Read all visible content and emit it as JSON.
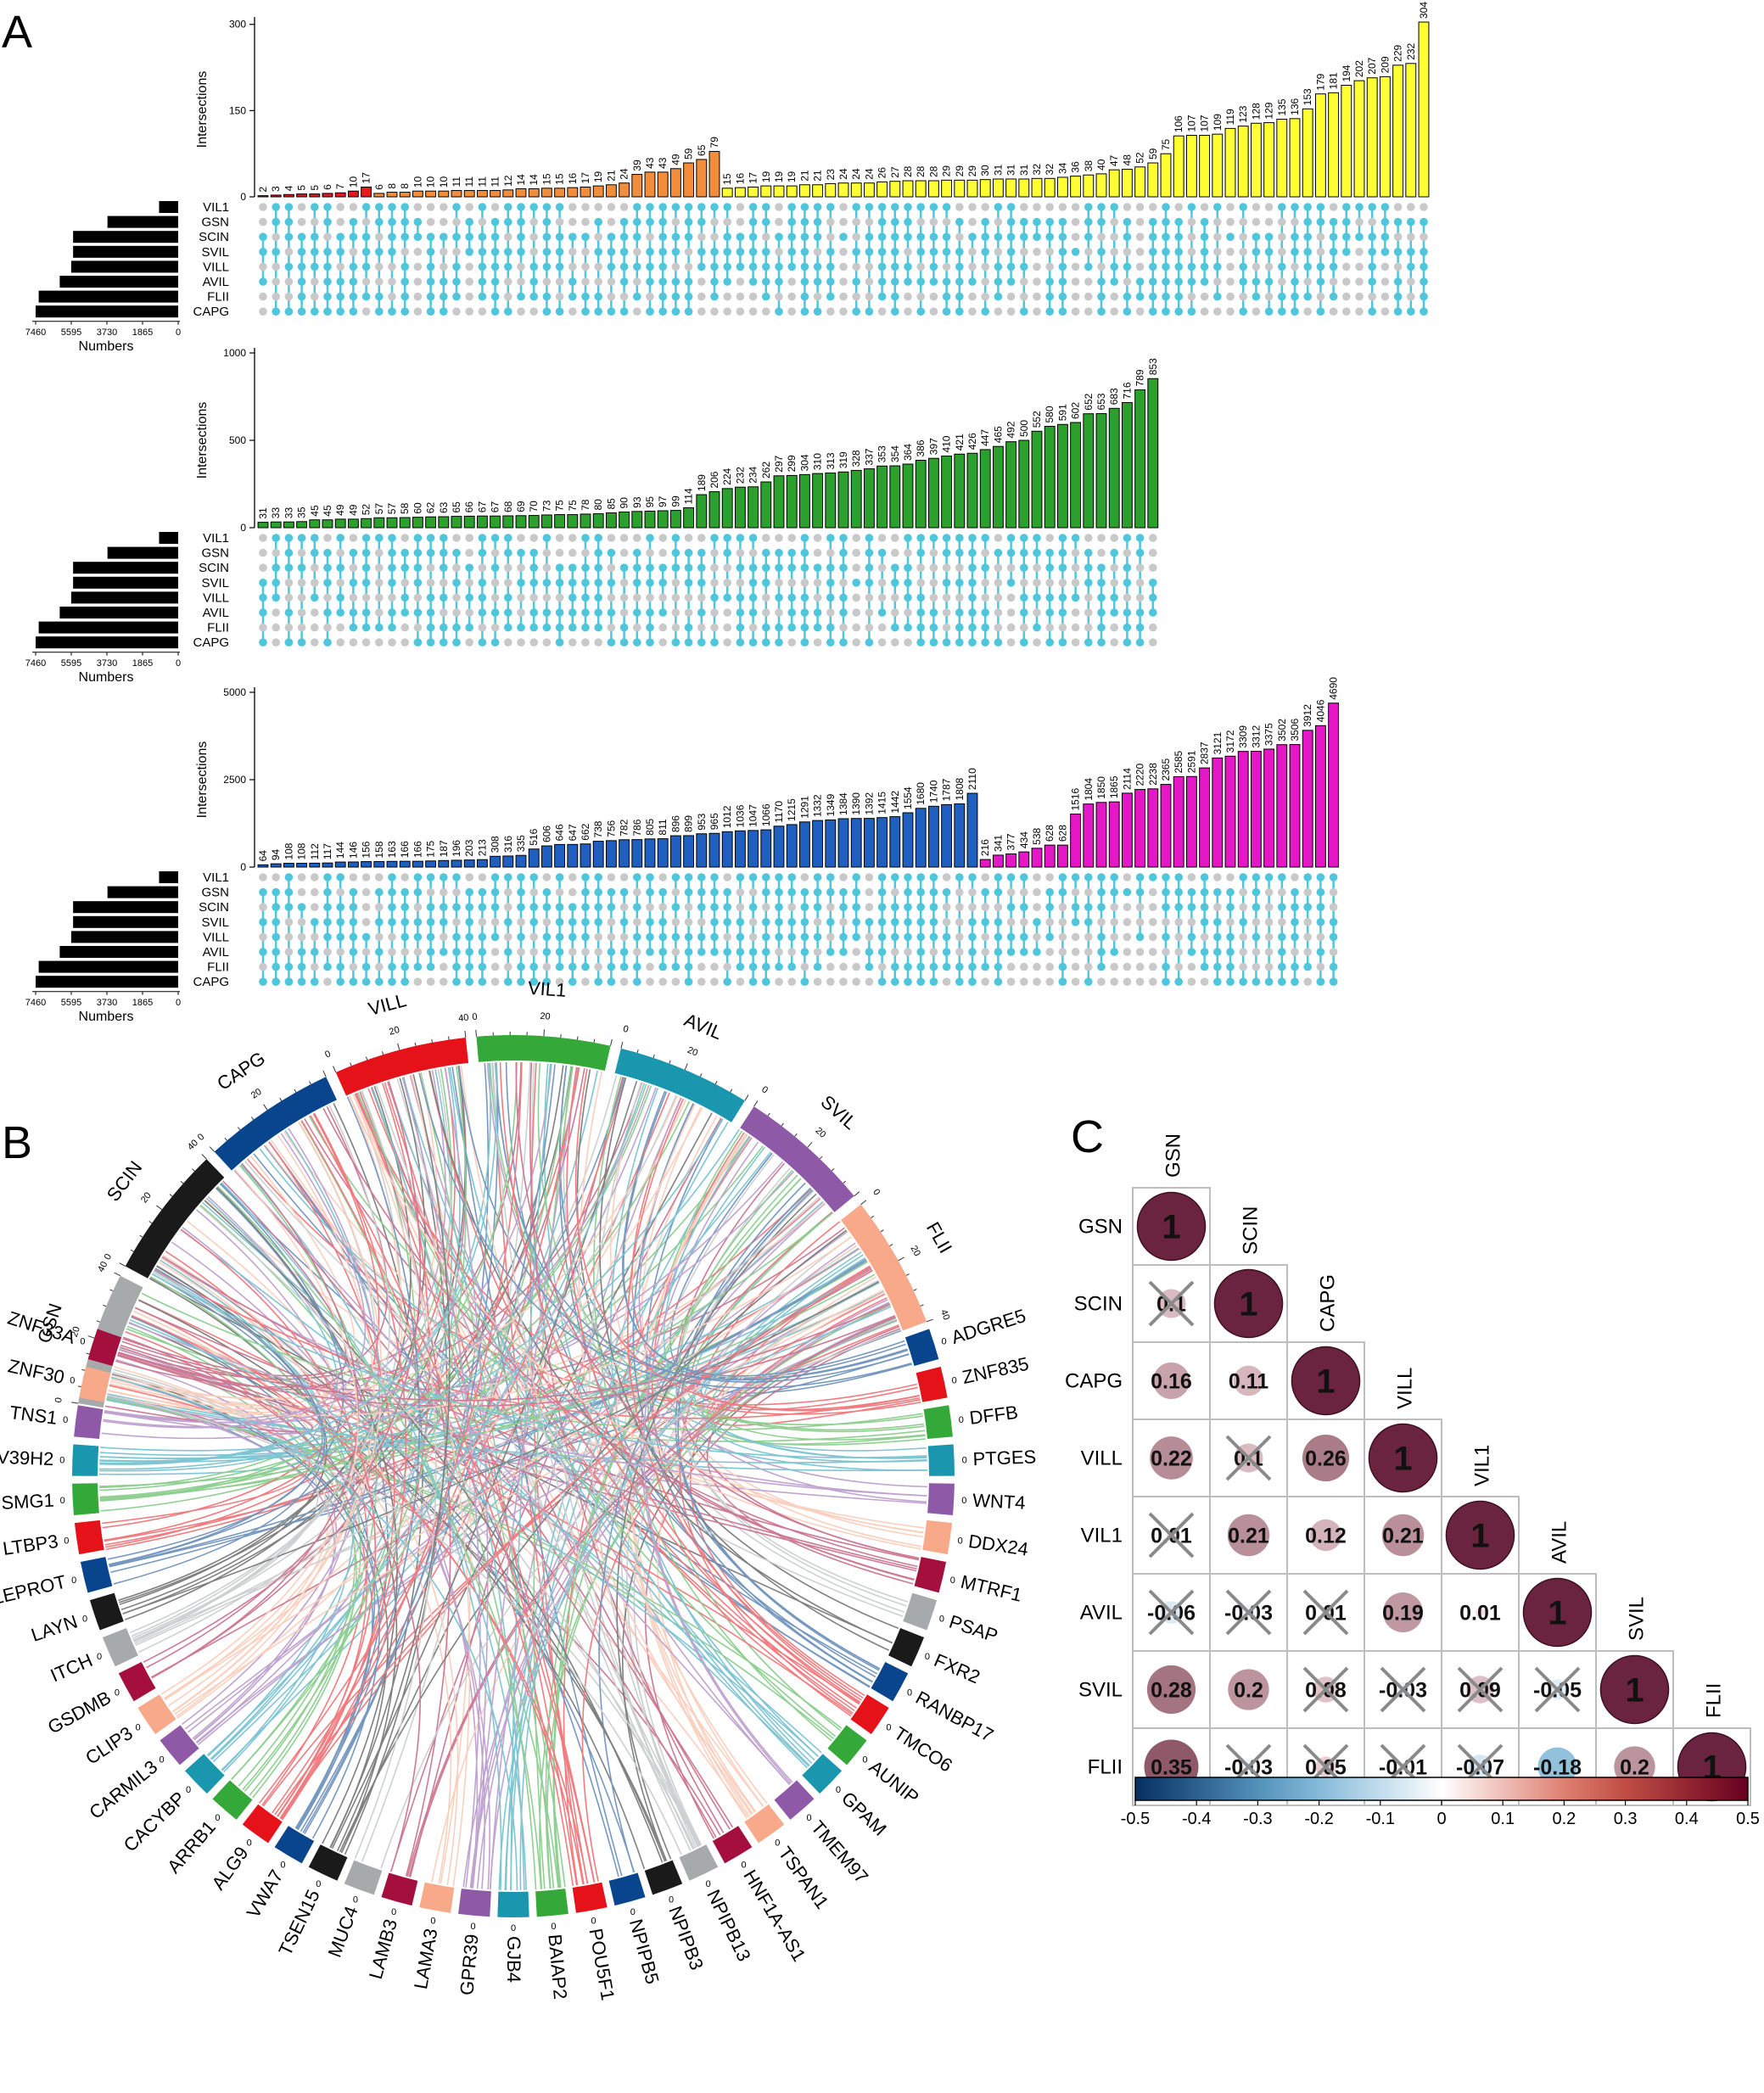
{
  "panel_labels": {
    "a": "A",
    "b": "B",
    "c": "C"
  },
  "chart_data": [
    {
      "id": "upset-1",
      "type": "bar",
      "ylabel": "Intersections",
      "xlabel": "Numbers",
      "ylim": [
        0,
        304
      ],
      "yticks": [
        0,
        150,
        300
      ],
      "set_ticks": [
        "7460",
        "5595",
        "3730",
        "1865",
        "0"
      ],
      "sets": [
        "VIL1",
        "GSN",
        "SCIN",
        "SVIL",
        "VILL",
        "AVIL",
        "FLII",
        "CAPG"
      ],
      "set_sizes": [
        1000,
        3700,
        5500,
        5500,
        5600,
        6200,
        7300,
        7460
      ],
      "series": [
        {
          "color": "#E31A1C",
          "values": [
            2,
            3,
            4,
            5,
            5,
            6,
            7,
            10,
            17
          ]
        },
        {
          "color": "#F28E3B",
          "values": [
            6,
            8,
            8,
            10,
            10,
            10,
            11,
            11,
            11,
            11,
            12,
            14,
            14,
            15,
            15,
            16,
            17,
            19,
            21,
            24,
            39,
            43,
            43,
            49,
            59,
            65,
            79
          ]
        },
        {
          "color": "#FFFF33",
          "values": [
            15,
            16,
            17,
            19,
            19,
            19,
            21,
            21,
            23,
            24,
            24,
            24,
            26,
            27,
            28,
            28,
            28,
            29,
            29,
            29,
            30,
            31,
            31,
            31,
            32,
            32,
            34,
            36,
            38,
            40,
            47,
            48,
            52,
            59,
            75,
            106,
            107,
            107,
            109,
            119,
            123,
            128,
            129,
            135,
            136,
            153,
            179,
            181,
            194,
            202,
            207,
            209,
            229,
            232,
            304
          ]
        }
      ]
    },
    {
      "id": "upset-2",
      "type": "bar",
      "ylabel": "Intersections",
      "xlabel": "Numbers",
      "ylim": [
        0,
        1000
      ],
      "yticks": [
        0,
        500,
        1000
      ],
      "set_ticks": [
        "7460",
        "5595",
        "3730",
        "1865",
        "0"
      ],
      "sets": [
        "VIL1",
        "GSN",
        "SCIN",
        "SVIL",
        "VILL",
        "AVIL",
        "FLII",
        "CAPG"
      ],
      "set_sizes": [
        1000,
        3700,
        5500,
        5500,
        5600,
        6200,
        7300,
        7460
      ],
      "series": [
        {
          "color": "#2CA02C",
          "values": [
            31,
            33,
            33,
            35,
            45,
            45,
            49,
            49,
            52,
            57,
            57,
            58,
            60,
            62,
            63,
            65,
            66,
            67,
            67,
            68,
            69,
            70,
            73,
            75,
            75,
            78,
            80,
            85,
            90,
            93,
            95,
            97,
            99,
            114,
            189,
            206,
            224,
            232,
            234,
            262,
            297,
            299,
            304,
            310,
            313,
            319,
            328,
            337,
            353,
            354,
            364,
            386,
            397,
            410,
            421,
            426,
            447,
            465,
            492,
            500,
            552,
            580,
            591,
            602,
            652,
            653,
            683,
            716,
            789,
            853
          ]
        }
      ]
    },
    {
      "id": "upset-3",
      "type": "bar",
      "ylabel": "Intersections",
      "xlabel": "Numbers",
      "ylim": [
        0,
        5000
      ],
      "yticks": [
        0,
        2500,
        5000
      ],
      "set_ticks": [
        "7460",
        "5595",
        "3730",
        "1865",
        "0"
      ],
      "sets": [
        "VIL1",
        "GSN",
        "SCIN",
        "SVIL",
        "VILL",
        "AVIL",
        "FLII",
        "CAPG"
      ],
      "set_sizes": [
        1000,
        3700,
        5500,
        5500,
        5600,
        6200,
        7300,
        7460
      ],
      "series": [
        {
          "color": "#1F5FBF",
          "values": [
            64,
            94,
            108,
            108,
            112,
            117,
            144,
            146,
            156,
            158,
            163,
            166,
            166,
            175,
            187,
            196,
            203,
            213,
            308,
            316,
            335,
            516,
            606,
            646,
            647,
            662,
            738,
            756,
            782,
            786,
            805,
            811,
            896,
            899,
            953,
            965,
            1012,
            1036,
            1047,
            1066,
            1170,
            1215,
            1291,
            1332,
            1349,
            1384,
            1390,
            1392,
            1415,
            1442,
            1554,
            1680,
            1740,
            1787,
            1808,
            2110
          ]
        },
        {
          "color": "#E617C6",
          "values": [
            216,
            341,
            377,
            434,
            538,
            628,
            628,
            1516,
            1804,
            1850,
            1865,
            2114,
            2220,
            2238,
            2365,
            2585,
            2591,
            2837,
            3121,
            3172,
            3309,
            3312,
            3375,
            3502,
            3506,
            3912,
            4046,
            4690
          ]
        }
      ]
    },
    {
      "id": "chord",
      "type": "diagram",
      "top_sectors": [
        {
          "name": "GSN",
          "color": "#A6AAAA",
          "ticks": [
            "0",
            "20",
            "40"
          ]
        },
        {
          "name": "SCIN",
          "color": "#1A1A1A",
          "ticks": [
            "0",
            "20",
            "40"
          ]
        },
        {
          "name": "CAPG",
          "color": "#08458C",
          "ticks": [
            "0",
            "20"
          ]
        },
        {
          "name": "VILL",
          "color": "#E6121A",
          "ticks": [
            "0",
            "20",
            "40"
          ]
        },
        {
          "name": "VIL1",
          "color": "#35A83A",
          "ticks": [
            "0",
            "20"
          ]
        },
        {
          "name": "AVIL",
          "color": "#1A96AF",
          "ticks": [
            "0",
            "20"
          ]
        },
        {
          "name": "SVIL",
          "color": "#8E5AA8",
          "ticks": [
            "0",
            "20"
          ]
        },
        {
          "name": "FLII",
          "color": "#F8A98A",
          "ticks": [
            "0",
            "20",
            "40"
          ]
        }
      ],
      "genes": [
        "ADGRE5",
        "ZNF835",
        "DFFB",
        "PTGES",
        "WNT4",
        "DDX24",
        "MTRF1",
        "PSAP",
        "FXR2",
        "RANBP17",
        "TMCO6",
        "AUNIP",
        "GPAM",
        "TMEM97",
        "TSPAN1",
        "HNF1A-AS1",
        "NPIPB13",
        "NPIPB3",
        "NPIPB5",
        "POU5F1",
        "BAIAP2",
        "GJB4",
        "GPR39",
        "LAMA3",
        "LAMB3",
        "MUC4",
        "TSEN15",
        "VWA7",
        "ALG9",
        "ARRB1",
        "CACYBP",
        "CARMIL3",
        "CLIP3",
        "GSDMB",
        "ITCH",
        "LAYN",
        "LEPROT",
        "LTBP3",
        "PSMG1",
        "SUV39H2",
        "TNS1",
        "ZNF30",
        "ZNF33A"
      ],
      "gene_tick": "0"
    },
    {
      "id": "corrplot",
      "type": "heatmap",
      "labels": [
        "GSN",
        "SCIN",
        "CAPG",
        "VILL",
        "VIL1",
        "AVIL",
        "SVIL",
        "FLII"
      ],
      "rows": [
        [
          "1"
        ],
        [
          "0.1",
          "1"
        ],
        [
          "0.16",
          "0.11",
          "1"
        ],
        [
          "0.22",
          "0.1",
          "0.26",
          "1"
        ],
        [
          "0.01",
          "0.21",
          "0.12",
          "0.21",
          "1"
        ],
        [
          "-0.06",
          "-0.03",
          "0.01",
          "0.19",
          "0.01",
          "1"
        ],
        [
          "0.28",
          "0.2",
          "0.08",
          "-0.03",
          "0.09",
          "-0.05",
          "1"
        ],
        [
          "0.35",
          "-0.03",
          "0.05",
          "-0.01",
          "-0.07",
          "-0.18",
          "0.2",
          "1"
        ]
      ],
      "crossed": [
        [
          false
        ],
        [
          true,
          false
        ],
        [
          false,
          false,
          false
        ],
        [
          false,
          true,
          false,
          false
        ],
        [
          true,
          false,
          false,
          false,
          false
        ],
        [
          true,
          true,
          true,
          false,
          false,
          false
        ],
        [
          false,
          false,
          true,
          true,
          true,
          true,
          false
        ],
        [
          false,
          true,
          true,
          true,
          true,
          false,
          false,
          false
        ]
      ],
      "colorbar_ticks": [
        "-0.5",
        "-0.4",
        "-0.3",
        "-0.2",
        "-0.1",
        "0",
        "0.1",
        "0.2",
        "0.3",
        "0.4",
        "0.5"
      ],
      "clim": [
        -0.5,
        0.5
      ]
    }
  ]
}
